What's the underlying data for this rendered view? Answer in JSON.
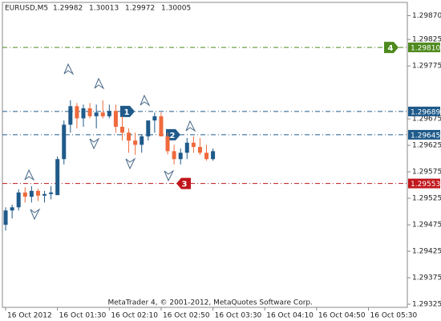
{
  "chart_data": {
    "type": "candlestick",
    "title": "EURUSD,M5",
    "header_prices": [
      "1.29982",
      "1.30013",
      "1.29972",
      "1.30005"
    ],
    "footer": "MetaTrader 4, © 2001-2012, MetaQuotes Software Corp.",
    "up_color": "#1f5a8a",
    "down_color": "#ef6a3c",
    "open": [
      1.29475,
      1.29502,
      1.29508,
      1.29536,
      1.29528,
      1.29539,
      1.2953,
      1.29533,
      1.29531,
      1.29599,
      1.29664,
      1.29699,
      1.29676,
      1.29695,
      1.2968,
      1.29687,
      1.2968,
      1.2969,
      1.2966,
      1.29649,
      1.29634,
      1.29626,
      1.29642,
      1.29672,
      1.2968,
      1.29642,
      1.29614,
      1.29599,
      1.29611,
      1.2963,
      1.29622,
      1.29611,
      1.29599
    ],
    "high": [
      1.29508,
      1.29513,
      1.29542,
      1.29546,
      1.29548,
      1.29543,
      1.29539,
      1.29548,
      1.29604,
      1.29672,
      1.2971,
      1.29705,
      1.29702,
      1.29705,
      1.29702,
      1.2971,
      1.29702,
      1.29702,
      1.2968,
      1.29657,
      1.29649,
      1.29645,
      1.29672,
      1.29687,
      1.29687,
      1.29649,
      1.29626,
      1.29619,
      1.29639,
      1.29642,
      1.29639,
      1.29626,
      1.29619
    ],
    "low": [
      1.29464,
      1.29487,
      1.29502,
      1.29517,
      1.29517,
      1.2952,
      1.29517,
      1.29523,
      1.29531,
      1.29589,
      1.29649,
      1.29657,
      1.2966,
      1.29676,
      1.29657,
      1.29676,
      1.29676,
      1.29649,
      1.29634,
      1.29611,
      1.29607,
      1.29611,
      1.29634,
      1.29649,
      1.29642,
      1.29608,
      1.29589,
      1.29589,
      1.29599,
      1.29611,
      1.29607,
      1.29596,
      1.29596
    ],
    "close": [
      1.29502,
      1.29508,
      1.29536,
      1.29528,
      1.29539,
      1.2953,
      1.29533,
      1.29536,
      1.29599,
      1.29664,
      1.29699,
      1.29676,
      1.29695,
      1.2968,
      1.29687,
      1.2968,
      1.2969,
      1.2966,
      1.29649,
      1.29634,
      1.29626,
      1.29642,
      1.29672,
      1.2968,
      1.29642,
      1.29614,
      1.29599,
      1.29611,
      1.2963,
      1.29622,
      1.29611,
      1.29599,
      1.29614
    ],
    "xlim": [
      -0.5,
      62
    ],
    "ylim": [
      1.29319,
      1.29895
    ],
    "yticks": [
      {
        "value": 1.2987,
        "label": "1.29870"
      },
      1.29825,
      1.29775,
      1.29675,
      1.29625,
      1.29575,
      1.29525,
      1.29475,
      1.29425,
      1.29375,
      1.29325
    ],
    "xticks": [
      {
        "value": 0,
        "label": "16 Oct 2012"
      },
      {
        "value": 8,
        "label": "16 Oct 01:30"
      },
      {
        "value": 16,
        "label": "16 Oct 02:10"
      },
      {
        "value": 24,
        "label": "16 Oct 02:50"
      },
      {
        "value": 32,
        "label": "16 Oct 03:30"
      },
      {
        "value": 40,
        "label": "16 Oct 04:10"
      },
      {
        "value": 48,
        "label": "16 Oct 04:50"
      },
      {
        "value": 56,
        "label": "16 Oct 05:30"
      }
    ],
    "levels": [
      {
        "name": "4",
        "value": 1.2981,
        "value_label": "1.29810",
        "color": "#4e8a1e"
      },
      {
        "name": "1",
        "value": 1.29689,
        "value_label": "1.29689",
        "color": "#1f5a8a"
      },
      {
        "name": "2",
        "value": 1.29645,
        "value_label": "1.29645",
        "color": "#1f5a8a"
      },
      {
        "name": "3",
        "value": 1.29553,
        "value_label": "1.29553",
        "color": "#c0161b"
      }
    ]
  }
}
